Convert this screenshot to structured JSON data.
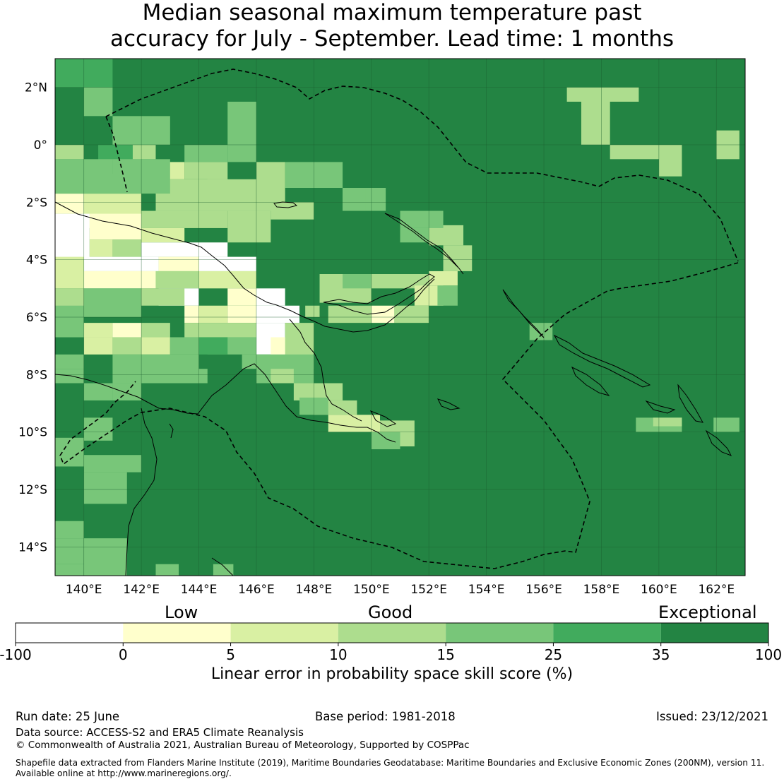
{
  "title": {
    "line1": "Median seasonal maximum temperature past",
    "line2": "accuracy for July - September. Lead time: 1 months"
  },
  "map": {
    "lon_range": [
      139,
      163
    ],
    "lat_range": [
      -15,
      3
    ],
    "lon_ticks": [
      140,
      142,
      144,
      146,
      148,
      150,
      152,
      154,
      156,
      158,
      160,
      162
    ],
    "lat_ticks": [
      2,
      0,
      -2,
      -4,
      -6,
      -8,
      -10,
      -12,
      -14
    ],
    "lon_tick_labels": [
      "140°E",
      "142°E",
      "144°E",
      "146°E",
      "148°E",
      "150°E",
      "152°E",
      "154°E",
      "156°E",
      "158°E",
      "160°E",
      "162°E"
    ],
    "lat_tick_labels": [
      "2°N",
      "0°",
      "2°S",
      "4°S",
      "6°S",
      "8°S",
      "10°S",
      "12°S",
      "14°S"
    ],
    "grid": true,
    "eez_boundary": "dashed"
  },
  "colorbar": {
    "categories": [
      "Low",
      "Good",
      "Exceptional"
    ],
    "tick_labels": [
      "-100",
      "0",
      "5",
      "10",
      "15",
      "25",
      "35",
      "100"
    ],
    "colors": [
      "#ffffff",
      "#ffffcc",
      "#d9f0a3",
      "#addd8e",
      "#78c679",
      "#41ab5d",
      "#238443"
    ],
    "label": "Linear error in probability space skill score (%)"
  },
  "footer": {
    "run_date": "Run date: 25 June",
    "base_period": "Base period: 1981-2018",
    "issued": "Issued: 23/12/2021",
    "data_source": "Data source: ACCESS-S2 and ERA5 Climate Reanalysis",
    "copyright": "© Commonwealth of Australia 2021, Australian Bureau of Meteorology, Supported by COSPPac",
    "shapefile_line1": "Shapefile data extracted from Flanders Marine Institute (2019), Maritime Boundaries Geodatabase: Maritime Boundaries and Exclusive Economic Zones (200NM), version 11.",
    "shapefile_line2": "Available online at http://www.marineregions.org/."
  }
}
